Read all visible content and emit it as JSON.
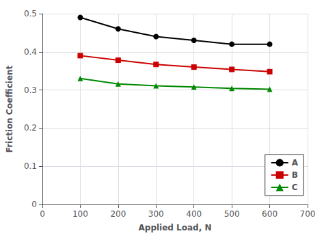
{
  "chart_data": {
    "type": "line",
    "x": [
      100,
      200,
      300,
      400,
      500,
      600
    ],
    "series": [
      {
        "name": "A",
        "color": "#000000",
        "marker": "circle",
        "values": [
          0.49,
          0.46,
          0.44,
          0.43,
          0.42,
          0.42
        ]
      },
      {
        "name": "B",
        "color": "#cc0000",
        "marker": "square",
        "values": [
          0.39,
          0.378,
          0.367,
          0.36,
          0.354,
          0.348
        ]
      },
      {
        "name": "C",
        "color": "#008800",
        "marker": "triangle",
        "values": [
          0.33,
          0.316,
          0.311,
          0.308,
          0.304,
          0.302
        ]
      }
    ],
    "xlabel": "Applied Load, N",
    "ylabel": "Friction Coefficient",
    "xlim": [
      0,
      700
    ],
    "ylim": [
      0,
      0.5
    ],
    "xticks": [
      0,
      100,
      200,
      300,
      400,
      500,
      600,
      700
    ],
    "yticks": [
      0,
      0.1,
      0.2,
      0.3,
      0.4,
      0.5
    ],
    "grid": true,
    "legend": "lower right"
  }
}
